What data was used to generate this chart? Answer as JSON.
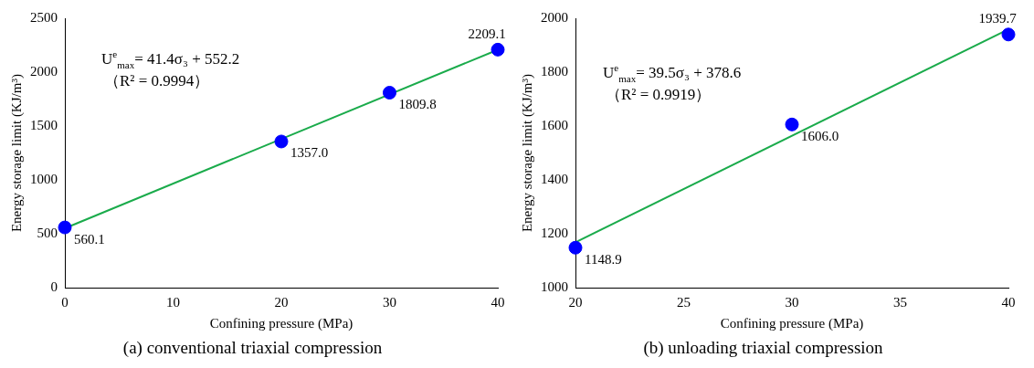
{
  "chart_data": [
    {
      "type": "scatter",
      "title": "(a) conventional triaxial compression",
      "xlabel": "Confining pressure (MPa)",
      "ylabel": "Energy storage limit (KJ/m³)",
      "xlim": [
        0,
        40
      ],
      "xticks": [
        0,
        10,
        20,
        30,
        40
      ],
      "ylim": [
        0,
        2500
      ],
      "yticks": [
        0,
        500,
        1000,
        1500,
        2000,
        2500
      ],
      "grid": false,
      "legend": false,
      "series": [
        {
          "color": "#0000ff",
          "marker": "circle",
          "x": [
            0,
            20,
            30,
            40
          ],
          "values": [
            560.1,
            1357.0,
            1809.8,
            2209.1
          ],
          "value_labels": [
            "560.1",
            "1357.0",
            "1809.8",
            "2209.1"
          ]
        },
        {
          "type": "line",
          "color": "#1aab4b",
          "marker": "none",
          "x": [
            0,
            40
          ],
          "values": [
            552,
            2208
          ]
        }
      ],
      "annotations": [
        "U$^{e}$$_{max}$= 41.4σ₃ + 552.2",
        "（R² = 0.9994）"
      ]
    },
    {
      "type": "scatter",
      "title": "(b) unloading triaxial compression",
      "xlabel": "Confining pressure (MPa)",
      "ylabel": "Energy storage limit (KJ/m³)",
      "xlim": [
        20,
        40
      ],
      "xticks": [
        20,
        25,
        30,
        35,
        40
      ],
      "ylim": [
        1000,
        2000
      ],
      "yticks": [
        1000,
        1200,
        1400,
        1600,
        1800,
        2000
      ],
      "grid": false,
      "legend": false,
      "series": [
        {
          "color": "#0000ff",
          "marker": "circle",
          "x": [
            20,
            30,
            40
          ],
          "values": [
            1148.9,
            1606.0,
            1939.7
          ],
          "value_labels": [
            "1148.9",
            "1606.0",
            "1939.7"
          ]
        },
        {
          "type": "line",
          "color": "#1aab4b",
          "marker": "none",
          "x": [
            20,
            40
          ],
          "values": [
            1169,
            1959
          ]
        }
      ],
      "annotations": [
        "U$^{e}$$_{max}$= 39.5σ₃ + 378.6",
        "（R² = 0.9919）"
      ]
    }
  ]
}
